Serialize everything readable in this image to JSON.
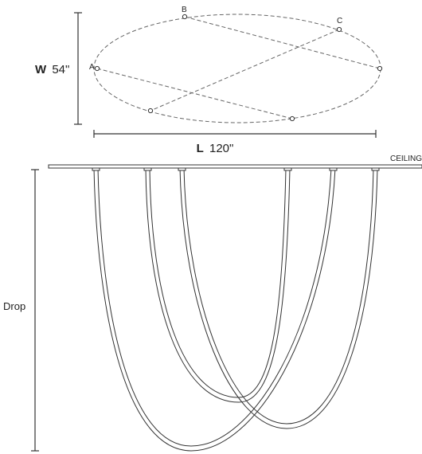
{
  "points": {
    "a": "A",
    "b": "B",
    "c": "C"
  },
  "width_dimension": {
    "letter": "W",
    "value": "54\""
  },
  "length_dimension": {
    "letter": "L",
    "value": "120\""
  },
  "ceiling_label": "CEILING",
  "drop_label": "Drop",
  "colors": {
    "line": "#333333",
    "dash": "#666666"
  }
}
